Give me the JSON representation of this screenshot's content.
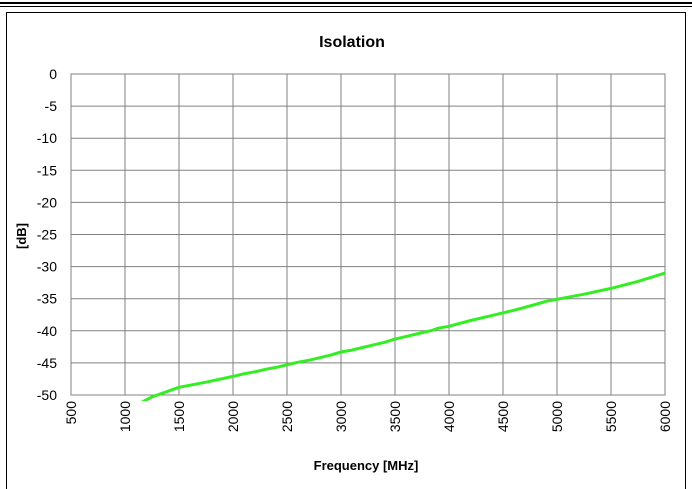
{
  "chart_data": {
    "type": "line",
    "title": "Isolation",
    "xlabel": "Frequency [MHz]",
    "ylabel": "[dB]",
    "xlim": [
      500,
      6000
    ],
    "ylim": [
      -50,
      0
    ],
    "xticks": [
      "500",
      "1000",
      "1500",
      "2000",
      "2500",
      "3000",
      "3500",
      "4000",
      "4500",
      "5000",
      "5500",
      "6000"
    ],
    "yticks": [
      "0",
      "-5",
      "-10",
      "-15",
      "-20",
      "-25",
      "-30",
      "-35",
      "-40",
      "-45",
      "-50"
    ],
    "grid": true,
    "line_color": "#33ee22",
    "series": [
      {
        "x": [
          1100,
          1250,
          1500,
          1750,
          2000,
          2100,
          2200,
          2300,
          2400,
          2500,
          2600,
          2700,
          2800,
          2900,
          3000,
          3100,
          3200,
          3300,
          3400,
          3500,
          3600,
          3700,
          3800,
          3850,
          3900,
          4000,
          4200,
          4400,
          4600,
          4800,
          4900,
          5000,
          5250,
          5500,
          5750,
          6000
        ],
        "y": [
          -51.6,
          -50.3,
          -48.8,
          -48.0,
          -47.1,
          -46.7,
          -46.4,
          -46.0,
          -45.7,
          -45.3,
          -44.9,
          -44.6,
          -44.2,
          -43.8,
          -43.3,
          -43.0,
          -42.6,
          -42.2,
          -41.8,
          -41.3,
          -40.9,
          -40.5,
          -40.1,
          -39.9,
          -39.6,
          -39.3,
          -38.4,
          -37.6,
          -36.8,
          -35.9,
          -35.4,
          -35.1,
          -34.3,
          -33.4,
          -32.3,
          -31.0
        ]
      }
    ]
  }
}
